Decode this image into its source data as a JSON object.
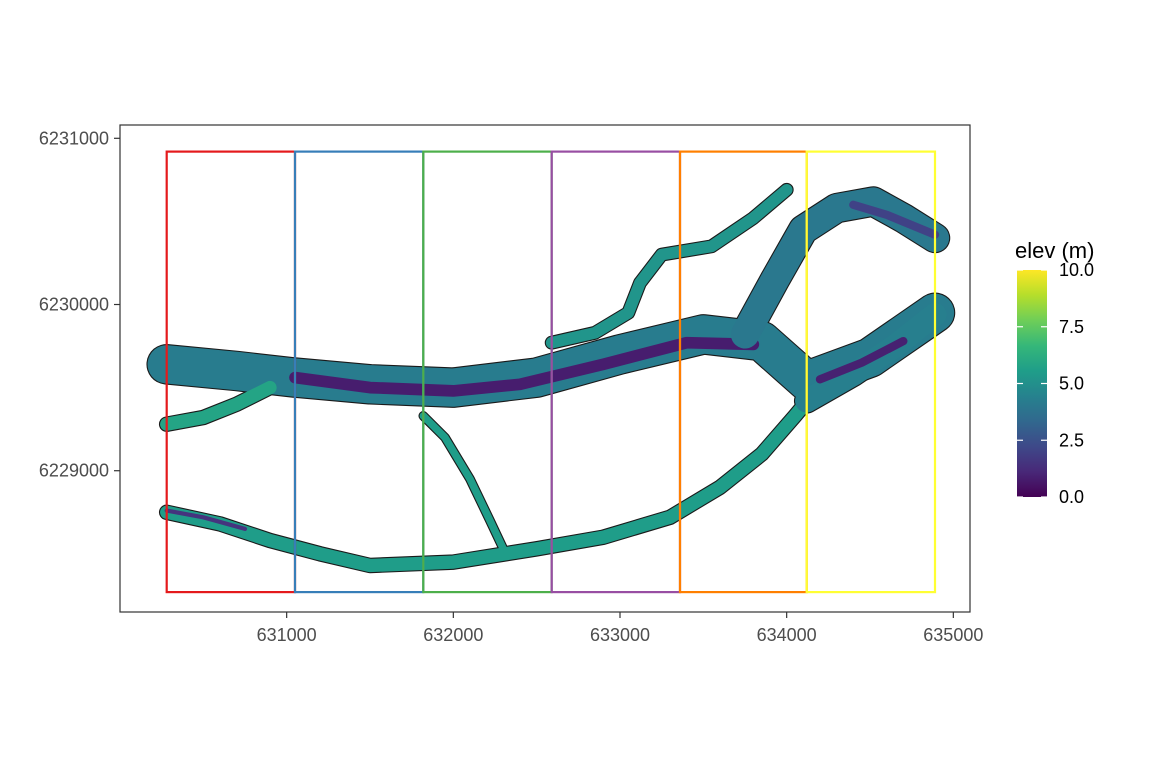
{
  "chart_data": {
    "type": "map",
    "title": "",
    "xlabel": "",
    "ylabel": "",
    "xlim": [
      630000,
      635100
    ],
    "ylim": [
      6228150,
      6231080
    ],
    "x_ticks": [
      {
        "value": 631000,
        "label": "631000"
      },
      {
        "value": 632000,
        "label": "632000"
      },
      {
        "value": 633000,
        "label": "633000"
      },
      {
        "value": 634000,
        "label": "634000"
      },
      {
        "value": 635000,
        "label": "635000"
      }
    ],
    "y_ticks": [
      {
        "value": 6229000,
        "label": "6229000"
      },
      {
        "value": 6230000,
        "label": "6230000"
      },
      {
        "value": 6231000,
        "label": "6231000"
      }
    ],
    "grid": false,
    "panels": [
      {
        "name": "panel-1",
        "xmin": 630280,
        "xmax": 631050,
        "ymin": 6228270,
        "ymax": 6230920,
        "color": "#e41a1c"
      },
      {
        "name": "panel-2",
        "xmin": 631050,
        "xmax": 631820,
        "ymin": 6228270,
        "ymax": 6230920,
        "color": "#377eb8"
      },
      {
        "name": "panel-3",
        "xmin": 631820,
        "xmax": 632590,
        "ymin": 6228270,
        "ymax": 6230920,
        "color": "#4daf4a"
      },
      {
        "name": "panel-4",
        "xmin": 632590,
        "xmax": 633360,
        "ymin": 6228270,
        "ymax": 6230920,
        "color": "#984ea3"
      },
      {
        "name": "panel-5",
        "xmin": 633360,
        "xmax": 634120,
        "ymin": 6228270,
        "ymax": 6230920,
        "color": "#ff7f00"
      },
      {
        "name": "panel-6",
        "xmin": 634120,
        "xmax": 634890,
        "ymin": 6228270,
        "ymax": 6230920,
        "color": "#ffff33"
      }
    ],
    "channels": [
      {
        "name": "main-channel-north",
        "width": 230,
        "shade": 4.2,
        "points": [
          [
            630280,
            6229640
          ],
          [
            630700,
            6229600
          ],
          [
            631050,
            6229560
          ],
          [
            631500,
            6229520
          ],
          [
            632000,
            6229500
          ],
          [
            632500,
            6229560
          ],
          [
            633000,
            6229700
          ],
          [
            633500,
            6229820
          ],
          [
            633850,
            6229780
          ],
          [
            634120,
            6229540
          ],
          [
            634500,
            6229680
          ],
          [
            634890,
            6229950
          ]
        ]
      },
      {
        "name": "main-channel-north-core",
        "width": 70,
        "shade": 0.8,
        "points": [
          [
            631050,
            6229560
          ],
          [
            631500,
            6229500
          ],
          [
            632000,
            6229480
          ],
          [
            632400,
            6229520
          ],
          [
            632900,
            6229640
          ],
          [
            633400,
            6229770
          ],
          [
            633800,
            6229760
          ]
        ]
      },
      {
        "name": "upper-branch",
        "width": 70,
        "shade": 5.2,
        "points": [
          [
            632590,
            6229770
          ],
          [
            632850,
            6229830
          ],
          [
            633050,
            6229950
          ],
          [
            633120,
            6230130
          ],
          [
            633250,
            6230300
          ],
          [
            633550,
            6230350
          ],
          [
            633800,
            6230520
          ],
          [
            634000,
            6230690
          ]
        ]
      },
      {
        "name": "upper-right-channel",
        "width": 170,
        "shade": 4.0,
        "points": [
          [
            633750,
            6229820
          ],
          [
            633930,
            6230150
          ],
          [
            634100,
            6230450
          ],
          [
            634300,
            6230580
          ],
          [
            634520,
            6230620
          ],
          [
            634700,
            6230520
          ],
          [
            634890,
            6230400
          ]
        ]
      },
      {
        "name": "upper-right-core",
        "width": 50,
        "shade": 2.0,
        "points": [
          [
            634400,
            6230600
          ],
          [
            634600,
            6230540
          ],
          [
            634890,
            6230420
          ]
        ]
      },
      {
        "name": "connector-mid",
        "width": 45,
        "shade": 5.5,
        "points": [
          [
            631820,
            6229330
          ],
          [
            631950,
            6229200
          ],
          [
            632100,
            6228950
          ],
          [
            632220,
            6228700
          ],
          [
            632300,
            6228530
          ]
        ]
      },
      {
        "name": "south-channel",
        "width": 80,
        "shade": 5.5,
        "points": [
          [
            630280,
            6228750
          ],
          [
            630600,
            6228680
          ],
          [
            630900,
            6228580
          ],
          [
            631200,
            6228500
          ],
          [
            631500,
            6228430
          ],
          [
            632000,
            6228450
          ],
          [
            632500,
            6228530
          ],
          [
            632900,
            6228600
          ],
          [
            633300,
            6228720
          ],
          [
            633600,
            6228900
          ],
          [
            633850,
            6229100
          ],
          [
            634050,
            6229330
          ],
          [
            634150,
            6229450
          ]
        ]
      },
      {
        "name": "south-channel-core",
        "width": 25,
        "shade": 1.5,
        "points": [
          [
            630280,
            6228760
          ],
          [
            630500,
            6228720
          ],
          [
            630750,
            6228650
          ]
        ]
      },
      {
        "name": "east-lower-channel",
        "width": 140,
        "shade": 4.3,
        "points": [
          [
            634120,
            6229420
          ],
          [
            634400,
            6229580
          ],
          [
            634650,
            6229750
          ],
          [
            634890,
            6229940
          ]
        ]
      },
      {
        "name": "east-lower-core",
        "width": 50,
        "shade": 0.9,
        "points": [
          [
            634200,
            6229550
          ],
          [
            634450,
            6229650
          ],
          [
            634700,
            6229780
          ]
        ]
      },
      {
        "name": "west-inlet",
        "width": 80,
        "shade": 5.8,
        "points": [
          [
            630280,
            6229280
          ],
          [
            630500,
            6229320
          ],
          [
            630700,
            6229400
          ],
          [
            630900,
            6229500
          ]
        ]
      }
    ],
    "legend": {
      "title": "elev (m)",
      "position": "right",
      "min": 0,
      "max": 10,
      "colors": [
        "#440154",
        "#482878",
        "#3e4989",
        "#31688e",
        "#26828e",
        "#1f9e89",
        "#35b779",
        "#6ece58",
        "#b5de2b",
        "#fde725"
      ],
      "ticks": [
        {
          "value": 0,
          "label": "0.0"
        },
        {
          "value": 2.5,
          "label": "2.5"
        },
        {
          "value": 5,
          "label": "5.0"
        },
        {
          "value": 7.5,
          "label": "7.5"
        },
        {
          "value": 10,
          "label": "10.0"
        }
      ]
    },
    "background": "#ffffff",
    "frame_color": "#333333"
  }
}
